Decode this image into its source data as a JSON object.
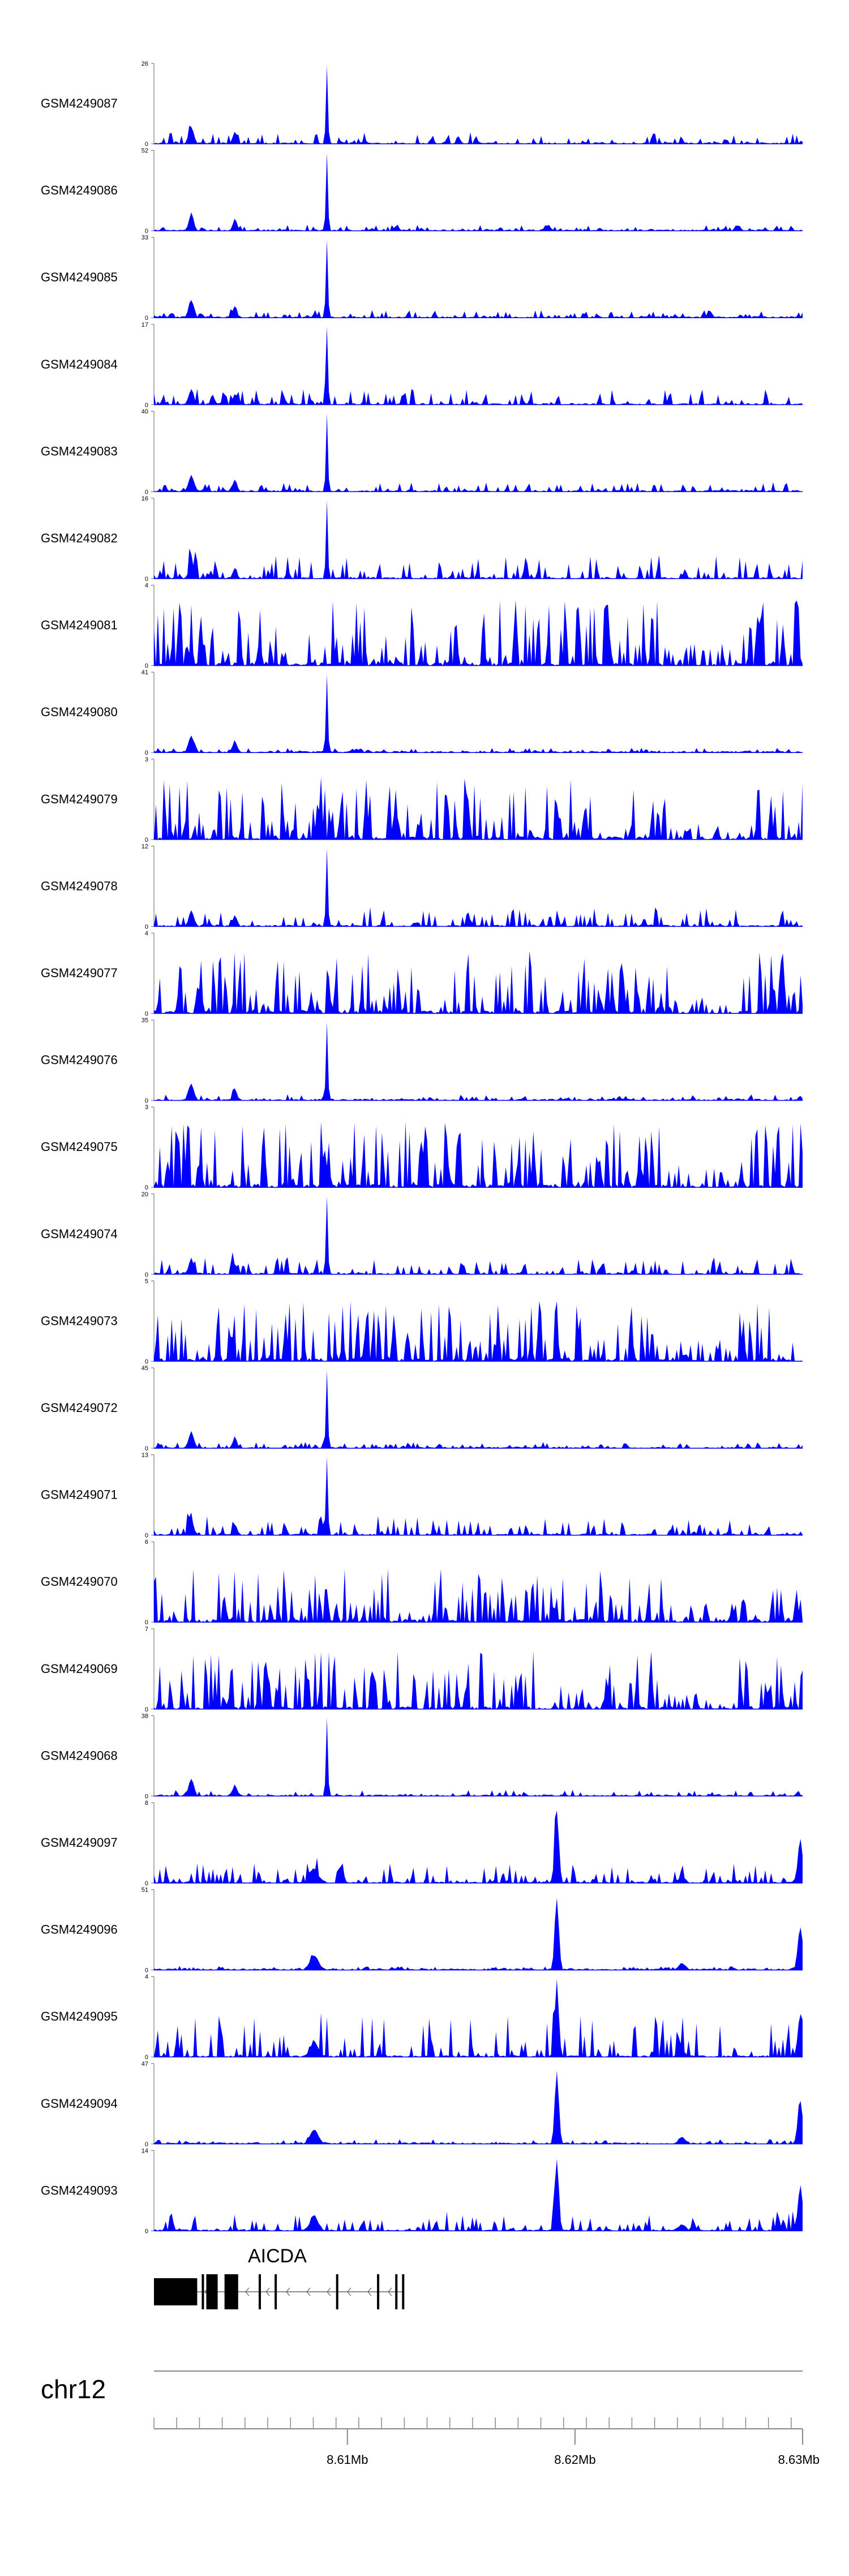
{
  "chart_data": {
    "type": "area",
    "chromosome": "chr12",
    "x_range": [
      8.6015,
      8.63
    ],
    "x_ticks": [
      8.61,
      8.62,
      8.63
    ],
    "x_tick_labels": [
      "8.61Mb",
      "8.62Mb",
      "8.63Mb"
    ],
    "fill_color": "#0000ff",
    "peak_positions_mb": [
      8.6091,
      8.6192,
      8.6299
    ],
    "tracks": [
      {
        "name": "GSM4249087",
        "ymax": 26,
        "pattern": "promoter",
        "noise": 0.15
      },
      {
        "name": "GSM4249086",
        "ymax": 52,
        "pattern": "promoter",
        "noise": 0.08
      },
      {
        "name": "GSM4249085",
        "ymax": 33,
        "pattern": "promoter",
        "noise": 0.1
      },
      {
        "name": "GSM4249084",
        "ymax": 17,
        "pattern": "promoter",
        "noise": 0.2
      },
      {
        "name": "GSM4249083",
        "ymax": 40,
        "pattern": "promoter",
        "noise": 0.12
      },
      {
        "name": "GSM4249082",
        "ymax": 16,
        "pattern": "promoter",
        "noise": 0.3
      },
      {
        "name": "GSM4249081",
        "ymax": 4,
        "pattern": "noisy",
        "noise": 0.85
      },
      {
        "name": "GSM4249080",
        "ymax": 41,
        "pattern": "promoter",
        "noise": 0.06
      },
      {
        "name": "GSM4249079",
        "ymax": 3,
        "pattern": "noisy",
        "noise": 0.8
      },
      {
        "name": "GSM4249078",
        "ymax": 12,
        "pattern": "promoter",
        "noise": 0.25
      },
      {
        "name": "GSM4249077",
        "ymax": 4,
        "pattern": "noisy",
        "noise": 0.8
      },
      {
        "name": "GSM4249076",
        "ymax": 35,
        "pattern": "promoter",
        "noise": 0.08
      },
      {
        "name": "GSM4249075",
        "ymax": 3,
        "pattern": "noisy",
        "noise": 0.85
      },
      {
        "name": "GSM4249074",
        "ymax": 20,
        "pattern": "promoter",
        "noise": 0.22
      },
      {
        "name": "GSM4249073",
        "ymax": 5,
        "pattern": "noisy",
        "noise": 0.8
      },
      {
        "name": "GSM4249072",
        "ymax": 45,
        "pattern": "promoter",
        "noise": 0.08
      },
      {
        "name": "GSM4249071",
        "ymax": 13,
        "pattern": "promoter",
        "noise": 0.25
      },
      {
        "name": "GSM4249070",
        "ymax": 6,
        "pattern": "noisy",
        "noise": 0.7
      },
      {
        "name": "GSM4249069",
        "ymax": 7,
        "pattern": "noisy",
        "noise": 0.75
      },
      {
        "name": "GSM4249068",
        "ymax": 38,
        "pattern": "promoter",
        "noise": 0.08
      },
      {
        "name": "GSM4249097",
        "ymax": 8,
        "pattern": "enhancer",
        "noise": 0.25
      },
      {
        "name": "GSM4249096",
        "ymax": 51,
        "pattern": "enhancer",
        "noise": 0.05
      },
      {
        "name": "GSM4249095",
        "ymax": 4,
        "pattern": "enhancer",
        "noise": 0.55
      },
      {
        "name": "GSM4249094",
        "ymax": 47,
        "pattern": "enhancer",
        "noise": 0.06
      },
      {
        "name": "GSM4249093",
        "ymax": 14,
        "pattern": "enhancer",
        "noise": 0.25
      }
    ],
    "gene": {
      "name": "AICDA",
      "start_mb": 8.6015,
      "end_mb": 8.6125,
      "strand": "-",
      "exons_mb": [
        [
          8.6015,
          8.6034
        ],
        [
          8.6036,
          8.6037
        ],
        [
          8.6038,
          8.6043
        ],
        [
          8.6046,
          8.6052
        ],
        [
          8.6061,
          8.6062
        ],
        [
          8.6068,
          8.6069
        ],
        [
          8.6095,
          8.6096
        ],
        [
          8.6113,
          8.6114
        ],
        [
          8.6121,
          8.6122
        ],
        [
          8.6124,
          8.6125
        ]
      ],
      "utr_mb": [
        [
          8.6015,
          8.6034
        ]
      ]
    }
  }
}
